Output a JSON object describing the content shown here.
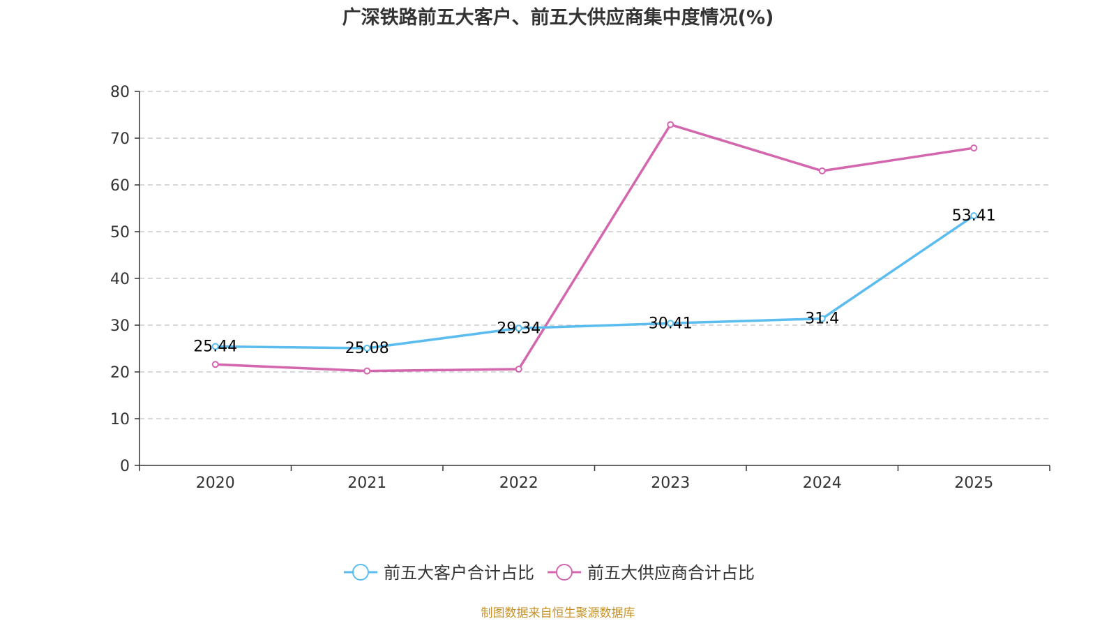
{
  "chart_data": {
    "type": "line",
    "title": "广深铁路前五大客户、前五大供应商集中度情况(%)",
    "categories": [
      "2020",
      "2021",
      "2022",
      "2023",
      "2024",
      "2025"
    ],
    "ylim": [
      0,
      80
    ],
    "yticks": [
      0,
      10,
      20,
      30,
      40,
      50,
      60,
      70,
      80
    ],
    "grid": true,
    "legend_position": "bottom-center",
    "series": [
      {
        "name": "前五大客户合计占比",
        "color": "#5bbcef",
        "values": [
          25.44,
          25.08,
          29.34,
          30.41,
          31.4,
          53.41
        ],
        "labels": [
          "25.44",
          "25.08",
          "29.34",
          "30.41",
          "31.4",
          "53.41"
        ],
        "show_labels": true
      },
      {
        "name": "前五大供应商合计占比",
        "color": "#d366ad",
        "values": [
          21.6,
          20.2,
          20.6,
          72.9,
          63.0,
          67.9
        ],
        "show_labels": false
      }
    ]
  },
  "source_text": "制图数据来自恒生聚源数据库",
  "colors": {
    "axis": "#333333",
    "grid": "#cccccc",
    "source": "#c8922a"
  }
}
